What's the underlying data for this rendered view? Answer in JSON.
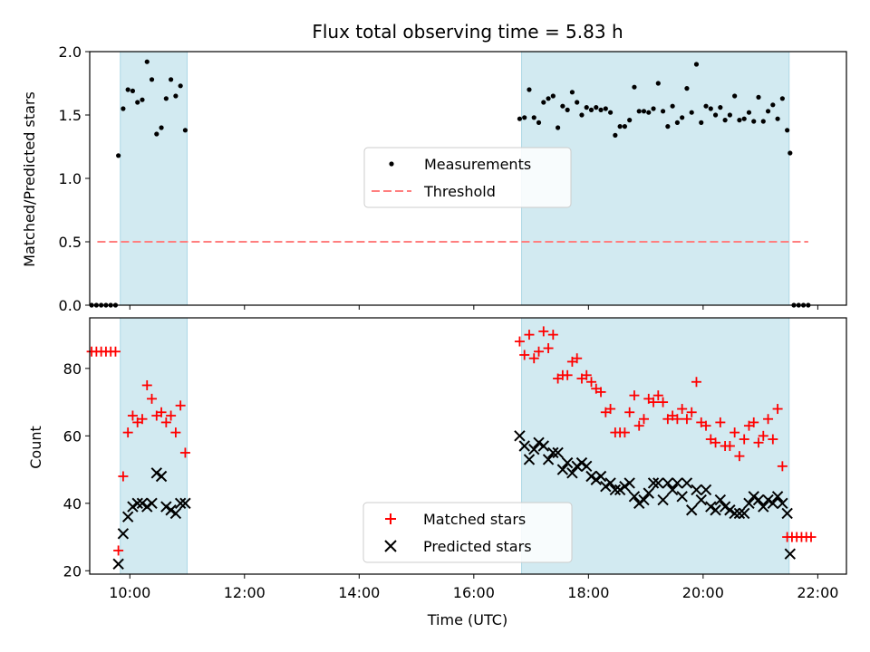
{
  "figure": {
    "title": "Flux total observing time = 5.83 h",
    "xlabel": "Time (UTC)",
    "top_ylabel": "Matched/Predicted stars",
    "bottom_ylabel": "Count"
  },
  "colors": {
    "shade": "#add8e6",
    "measurements": "#000000",
    "threshold": "#ff7f7f",
    "matched": "#ff0000",
    "predicted": "#000000",
    "legend_bg": "#ffffff"
  },
  "chart_data": [
    {
      "type": "scatter",
      "title": "Flux total observing time = 5.83 h",
      "xlabel": "",
      "ylabel": "Matched/Predicted stars",
      "xlim": [
        "09:18",
        "22:30"
      ],
      "ylim": [
        0,
        2.0
      ],
      "yticks": [
        0.0,
        0.5,
        1.0,
        1.5,
        2.0
      ],
      "ytick_labels": [
        "0.0",
        "0.5",
        "1.0",
        "1.5",
        "2.0"
      ],
      "legend": "center",
      "shaded_intervals": [
        [
          "09:50",
          "11:00"
        ],
        [
          "16:50",
          "21:30"
        ]
      ],
      "threshold": {
        "name": "Threshold",
        "y": 0.5,
        "x": [
          "09:26",
          "21:50"
        ]
      },
      "series": [
        {
          "name": "Measurements",
          "points": [
            [
              "09:20",
              0.0
            ],
            [
              "09:25",
              0.0
            ],
            [
              "09:30",
              0.0
            ],
            [
              "09:35",
              0.0
            ],
            [
              "09:40",
              0.0
            ],
            [
              "09:45",
              0.0
            ],
            [
              "09:48",
              1.18
            ],
            [
              "09:53",
              1.55
            ],
            [
              "09:58",
              1.7
            ],
            [
              "10:03",
              1.69
            ],
            [
              "10:08",
              1.6
            ],
            [
              "10:13",
              1.62
            ],
            [
              "10:18",
              1.92
            ],
            [
              "10:23",
              1.78
            ],
            [
              "10:28",
              1.35
            ],
            [
              "10:33",
              1.4
            ],
            [
              "10:38",
              1.63
            ],
            [
              "10:43",
              1.78
            ],
            [
              "10:48",
              1.65
            ],
            [
              "10:53",
              1.73
            ],
            [
              "10:58",
              1.38
            ],
            [
              "16:48",
              1.47
            ],
            [
              "16:53",
              1.48
            ],
            [
              "16:58",
              1.7
            ],
            [
              "17:03",
              1.48
            ],
            [
              "17:08",
              1.44
            ],
            [
              "17:13",
              1.6
            ],
            [
              "17:18",
              1.63
            ],
            [
              "17:23",
              1.65
            ],
            [
              "17:28",
              1.4
            ],
            [
              "17:33",
              1.57
            ],
            [
              "17:38",
              1.54
            ],
            [
              "17:43",
              1.68
            ],
            [
              "17:48",
              1.6
            ],
            [
              "17:53",
              1.5
            ],
            [
              "17:58",
              1.56
            ],
            [
              "18:03",
              1.54
            ],
            [
              "18:08",
              1.56
            ],
            [
              "18:13",
              1.54
            ],
            [
              "18:18",
              1.55
            ],
            [
              "18:23",
              1.52
            ],
            [
              "18:28",
              1.34
            ],
            [
              "18:33",
              1.41
            ],
            [
              "18:38",
              1.41
            ],
            [
              "18:43",
              1.46
            ],
            [
              "18:48",
              1.72
            ],
            [
              "18:53",
              1.53
            ],
            [
              "18:58",
              1.53
            ],
            [
              "19:03",
              1.52
            ],
            [
              "19:08",
              1.55
            ],
            [
              "19:13",
              1.75
            ],
            [
              "19:18",
              1.53
            ],
            [
              "19:23",
              1.41
            ],
            [
              "19:28",
              1.57
            ],
            [
              "19:33",
              1.44
            ],
            [
              "19:38",
              1.48
            ],
            [
              "19:43",
              1.71
            ],
            [
              "19:48",
              1.52
            ],
            [
              "19:53",
              1.9
            ],
            [
              "19:58",
              1.44
            ],
            [
              "20:03",
              1.57
            ],
            [
              "20:08",
              1.55
            ],
            [
              "20:13",
              1.5
            ],
            [
              "20:18",
              1.56
            ],
            [
              "20:23",
              1.46
            ],
            [
              "20:28",
              1.5
            ],
            [
              "20:33",
              1.65
            ],
            [
              "20:38",
              1.46
            ],
            [
              "20:43",
              1.47
            ],
            [
              "20:48",
              1.52
            ],
            [
              "20:53",
              1.45
            ],
            [
              "20:58",
              1.64
            ],
            [
              "21:03",
              1.45
            ],
            [
              "21:08",
              1.53
            ],
            [
              "21:13",
              1.58
            ],
            [
              "21:18",
              1.47
            ],
            [
              "21:23",
              1.63
            ],
            [
              "21:28",
              1.38
            ],
            [
              "21:31",
              1.2
            ],
            [
              "21:35",
              0.0
            ],
            [
              "21:40",
              0.0
            ],
            [
              "21:45",
              0.0
            ],
            [
              "21:50",
              0.0
            ]
          ]
        }
      ]
    },
    {
      "type": "scatter",
      "title": "",
      "xlabel": "Time (UTC)",
      "ylabel": "Count",
      "xlim": [
        "09:18",
        "22:30"
      ],
      "ylim": [
        19,
        95
      ],
      "yticks": [
        20,
        40,
        60,
        80
      ],
      "ytick_labels": [
        "20",
        "40",
        "60",
        "80"
      ],
      "xticks": [
        "10:00",
        "12:00",
        "14:00",
        "16:00",
        "18:00",
        "20:00",
        "22:00"
      ],
      "legend": "bottom-center",
      "shaded_intervals": [
        [
          "09:50",
          "11:00"
        ],
        [
          "16:50",
          "21:30"
        ]
      ],
      "series": [
        {
          "name": "Matched stars",
          "points": [
            [
              "09:20",
              85
            ],
            [
              "09:25",
              85
            ],
            [
              "09:30",
              85
            ],
            [
              "09:35",
              85
            ],
            [
              "09:40",
              85
            ],
            [
              "09:45",
              85
            ],
            [
              "09:48",
              26
            ],
            [
              "09:53",
              48
            ],
            [
              "09:58",
              61
            ],
            [
              "10:03",
              66
            ],
            [
              "10:08",
              64
            ],
            [
              "10:13",
              65
            ],
            [
              "10:18",
              75
            ],
            [
              "10:23",
              71
            ],
            [
              "10:28",
              66
            ],
            [
              "10:33",
              67
            ],
            [
              "10:38",
              64
            ],
            [
              "10:43",
              66
            ],
            [
              "10:48",
              61
            ],
            [
              "10:53",
              69
            ],
            [
              "10:58",
              55
            ],
            [
              "16:48",
              88
            ],
            [
              "16:53",
              84
            ],
            [
              "16:58",
              90
            ],
            [
              "17:03",
              83
            ],
            [
              "17:08",
              85
            ],
            [
              "17:13",
              91
            ],
            [
              "17:18",
              86
            ],
            [
              "17:23",
              90
            ],
            [
              "17:28",
              77
            ],
            [
              "17:33",
              78
            ],
            [
              "17:38",
              78
            ],
            [
              "17:43",
              82
            ],
            [
              "17:48",
              83
            ],
            [
              "17:53",
              77
            ],
            [
              "17:58",
              78
            ],
            [
              "18:03",
              76
            ],
            [
              "18:08",
              74
            ],
            [
              "18:13",
              73
            ],
            [
              "18:18",
              67
            ],
            [
              "18:23",
              68
            ],
            [
              "18:28",
              61
            ],
            [
              "18:33",
              61
            ],
            [
              "18:38",
              61
            ],
            [
              "18:43",
              67
            ],
            [
              "18:48",
              72
            ],
            [
              "18:53",
              63
            ],
            [
              "18:58",
              65
            ],
            [
              "19:03",
              71
            ],
            [
              "19:08",
              70
            ],
            [
              "19:13",
              72
            ],
            [
              "19:18",
              70
            ],
            [
              "19:23",
              65
            ],
            [
              "19:28",
              66
            ],
            [
              "19:33",
              65
            ],
            [
              "19:38",
              68
            ],
            [
              "19:43",
              65
            ],
            [
              "19:48",
              67
            ],
            [
              "19:53",
              76
            ],
            [
              "19:58",
              64
            ],
            [
              "20:03",
              63
            ],
            [
              "20:08",
              59
            ],
            [
              "20:13",
              58
            ],
            [
              "20:18",
              64
            ],
            [
              "20:23",
              57
            ],
            [
              "20:28",
              57
            ],
            [
              "20:33",
              61
            ],
            [
              "20:38",
              54
            ],
            [
              "20:43",
              59
            ],
            [
              "20:48",
              63
            ],
            [
              "20:53",
              64
            ],
            [
              "20:58",
              58
            ],
            [
              "21:03",
              60
            ],
            [
              "21:08",
              65
            ],
            [
              "21:13",
              59
            ],
            [
              "21:18",
              68
            ],
            [
              "21:23",
              51
            ],
            [
              "21:28",
              30
            ],
            [
              "21:33",
              30
            ],
            [
              "21:38",
              30
            ],
            [
              "21:43",
              30
            ],
            [
              "21:48",
              30
            ],
            [
              "21:53",
              30
            ]
          ]
        },
        {
          "name": "Predicted stars",
          "points": [
            [
              "09:48",
              22
            ],
            [
              "09:53",
              31
            ],
            [
              "09:58",
              36
            ],
            [
              "10:03",
              39
            ],
            [
              "10:08",
              40
            ],
            [
              "10:13",
              40
            ],
            [
              "10:18",
              39
            ],
            [
              "10:23",
              40
            ],
            [
              "10:28",
              49
            ],
            [
              "10:33",
              48
            ],
            [
              "10:38",
              39
            ],
            [
              "10:43",
              38
            ],
            [
              "10:48",
              37
            ],
            [
              "10:53",
              40
            ],
            [
              "10:58",
              40
            ],
            [
              "16:48",
              60
            ],
            [
              "16:53",
              57
            ],
            [
              "16:58",
              53
            ],
            [
              "17:03",
              56
            ],
            [
              "17:08",
              58
            ],
            [
              "17:13",
              57
            ],
            [
              "17:18",
              53
            ],
            [
              "17:23",
              55
            ],
            [
              "17:28",
              55
            ],
            [
              "17:33",
              50
            ],
            [
              "17:38",
              52
            ],
            [
              "17:43",
              49
            ],
            [
              "17:48",
              51
            ],
            [
              "17:53",
              52
            ],
            [
              "17:58",
              51
            ],
            [
              "18:03",
              48
            ],
            [
              "18:08",
              47
            ],
            [
              "18:13",
              48
            ],
            [
              "18:18",
              45
            ],
            [
              "18:23",
              46
            ],
            [
              "18:28",
              44
            ],
            [
              "18:33",
              44
            ],
            [
              "18:38",
              45
            ],
            [
              "18:43",
              46
            ],
            [
              "18:48",
              42
            ],
            [
              "18:53",
              40
            ],
            [
              "18:58",
              41
            ],
            [
              "19:03",
              43
            ],
            [
              "19:08",
              46
            ],
            [
              "19:13",
              46
            ],
            [
              "19:18",
              41
            ],
            [
              "19:23",
              46
            ],
            [
              "19:28",
              44
            ],
            [
              "19:33",
              46
            ],
            [
              "19:38",
              42
            ],
            [
              "19:43",
              46
            ],
            [
              "19:48",
              38
            ],
            [
              "19:53",
              44
            ],
            [
              "19:58",
              41
            ],
            [
              "20:03",
              44
            ],
            [
              "20:08",
              39
            ],
            [
              "20:13",
              38
            ],
            [
              "20:18",
              41
            ],
            [
              "20:23",
              39
            ],
            [
              "20:28",
              38
            ],
            [
              "20:33",
              37
            ],
            [
              "20:38",
              37
            ],
            [
              "20:43",
              37
            ],
            [
              "20:48",
              40
            ],
            [
              "20:53",
              42
            ],
            [
              "20:58",
              41
            ],
            [
              "21:03",
              39
            ],
            [
              "21:08",
              41
            ],
            [
              "21:13",
              40
            ],
            [
              "21:18",
              42
            ],
            [
              "21:23",
              40
            ],
            [
              "21:28",
              37
            ],
            [
              "21:31",
              25
            ]
          ]
        }
      ]
    }
  ]
}
